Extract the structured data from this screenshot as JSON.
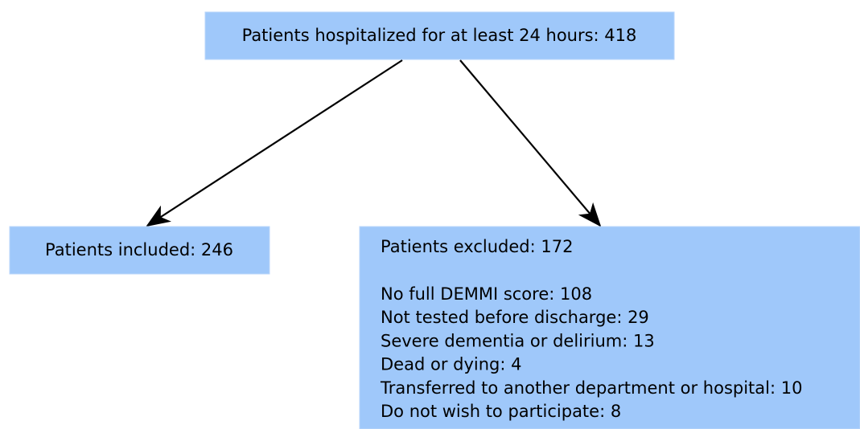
{
  "nodes": [
    {
      "label": "Patients hospitalized for at least 24 hours: 418"
    },
    {
      "label": "Patients included: 246"
    },
    {
      "label": "Patients excluded: 172",
      "items": [
        "No full DEMMI score: 108",
        "Not tested before discharge: 29",
        "Severe dementia or delirium: 13",
        "Dead or dying: 4",
        "Transferred to another department or hospital: 10",
        "Do not wish to participate: 8"
      ]
    }
  ]
}
